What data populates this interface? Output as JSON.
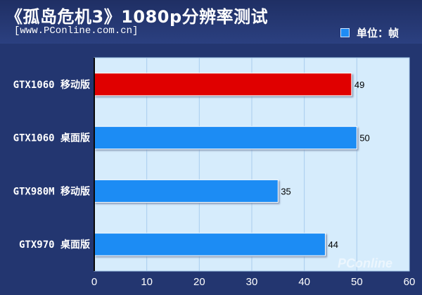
{
  "header": {
    "title": "《孤岛危机3》1080p分辨率测试",
    "source": "[www.PConline.com.cn]",
    "legend_label": "单位：帧"
  },
  "watermark": "PConline",
  "colors": {
    "background": "#233670",
    "plot_area": "#d6ecfc",
    "bar_blue": "#1e8cf4",
    "bar_red": "#e00000"
  },
  "chart_data": {
    "type": "bar",
    "orientation": "horizontal",
    "categories": [
      "GTX1060 移动版",
      "GTX1060 桌面版",
      "GTX980M 移动版",
      "GTX970 桌面版"
    ],
    "values": [
      49,
      50,
      35,
      44
    ],
    "bar_colors": [
      "#e00000",
      "#1e8cf4",
      "#1e8cf4",
      "#1e8cf4"
    ],
    "xlim": [
      0,
      60
    ],
    "xticks": [
      0,
      10,
      20,
      30,
      40,
      50,
      60
    ],
    "legend": "top-right",
    "grid": true
  }
}
